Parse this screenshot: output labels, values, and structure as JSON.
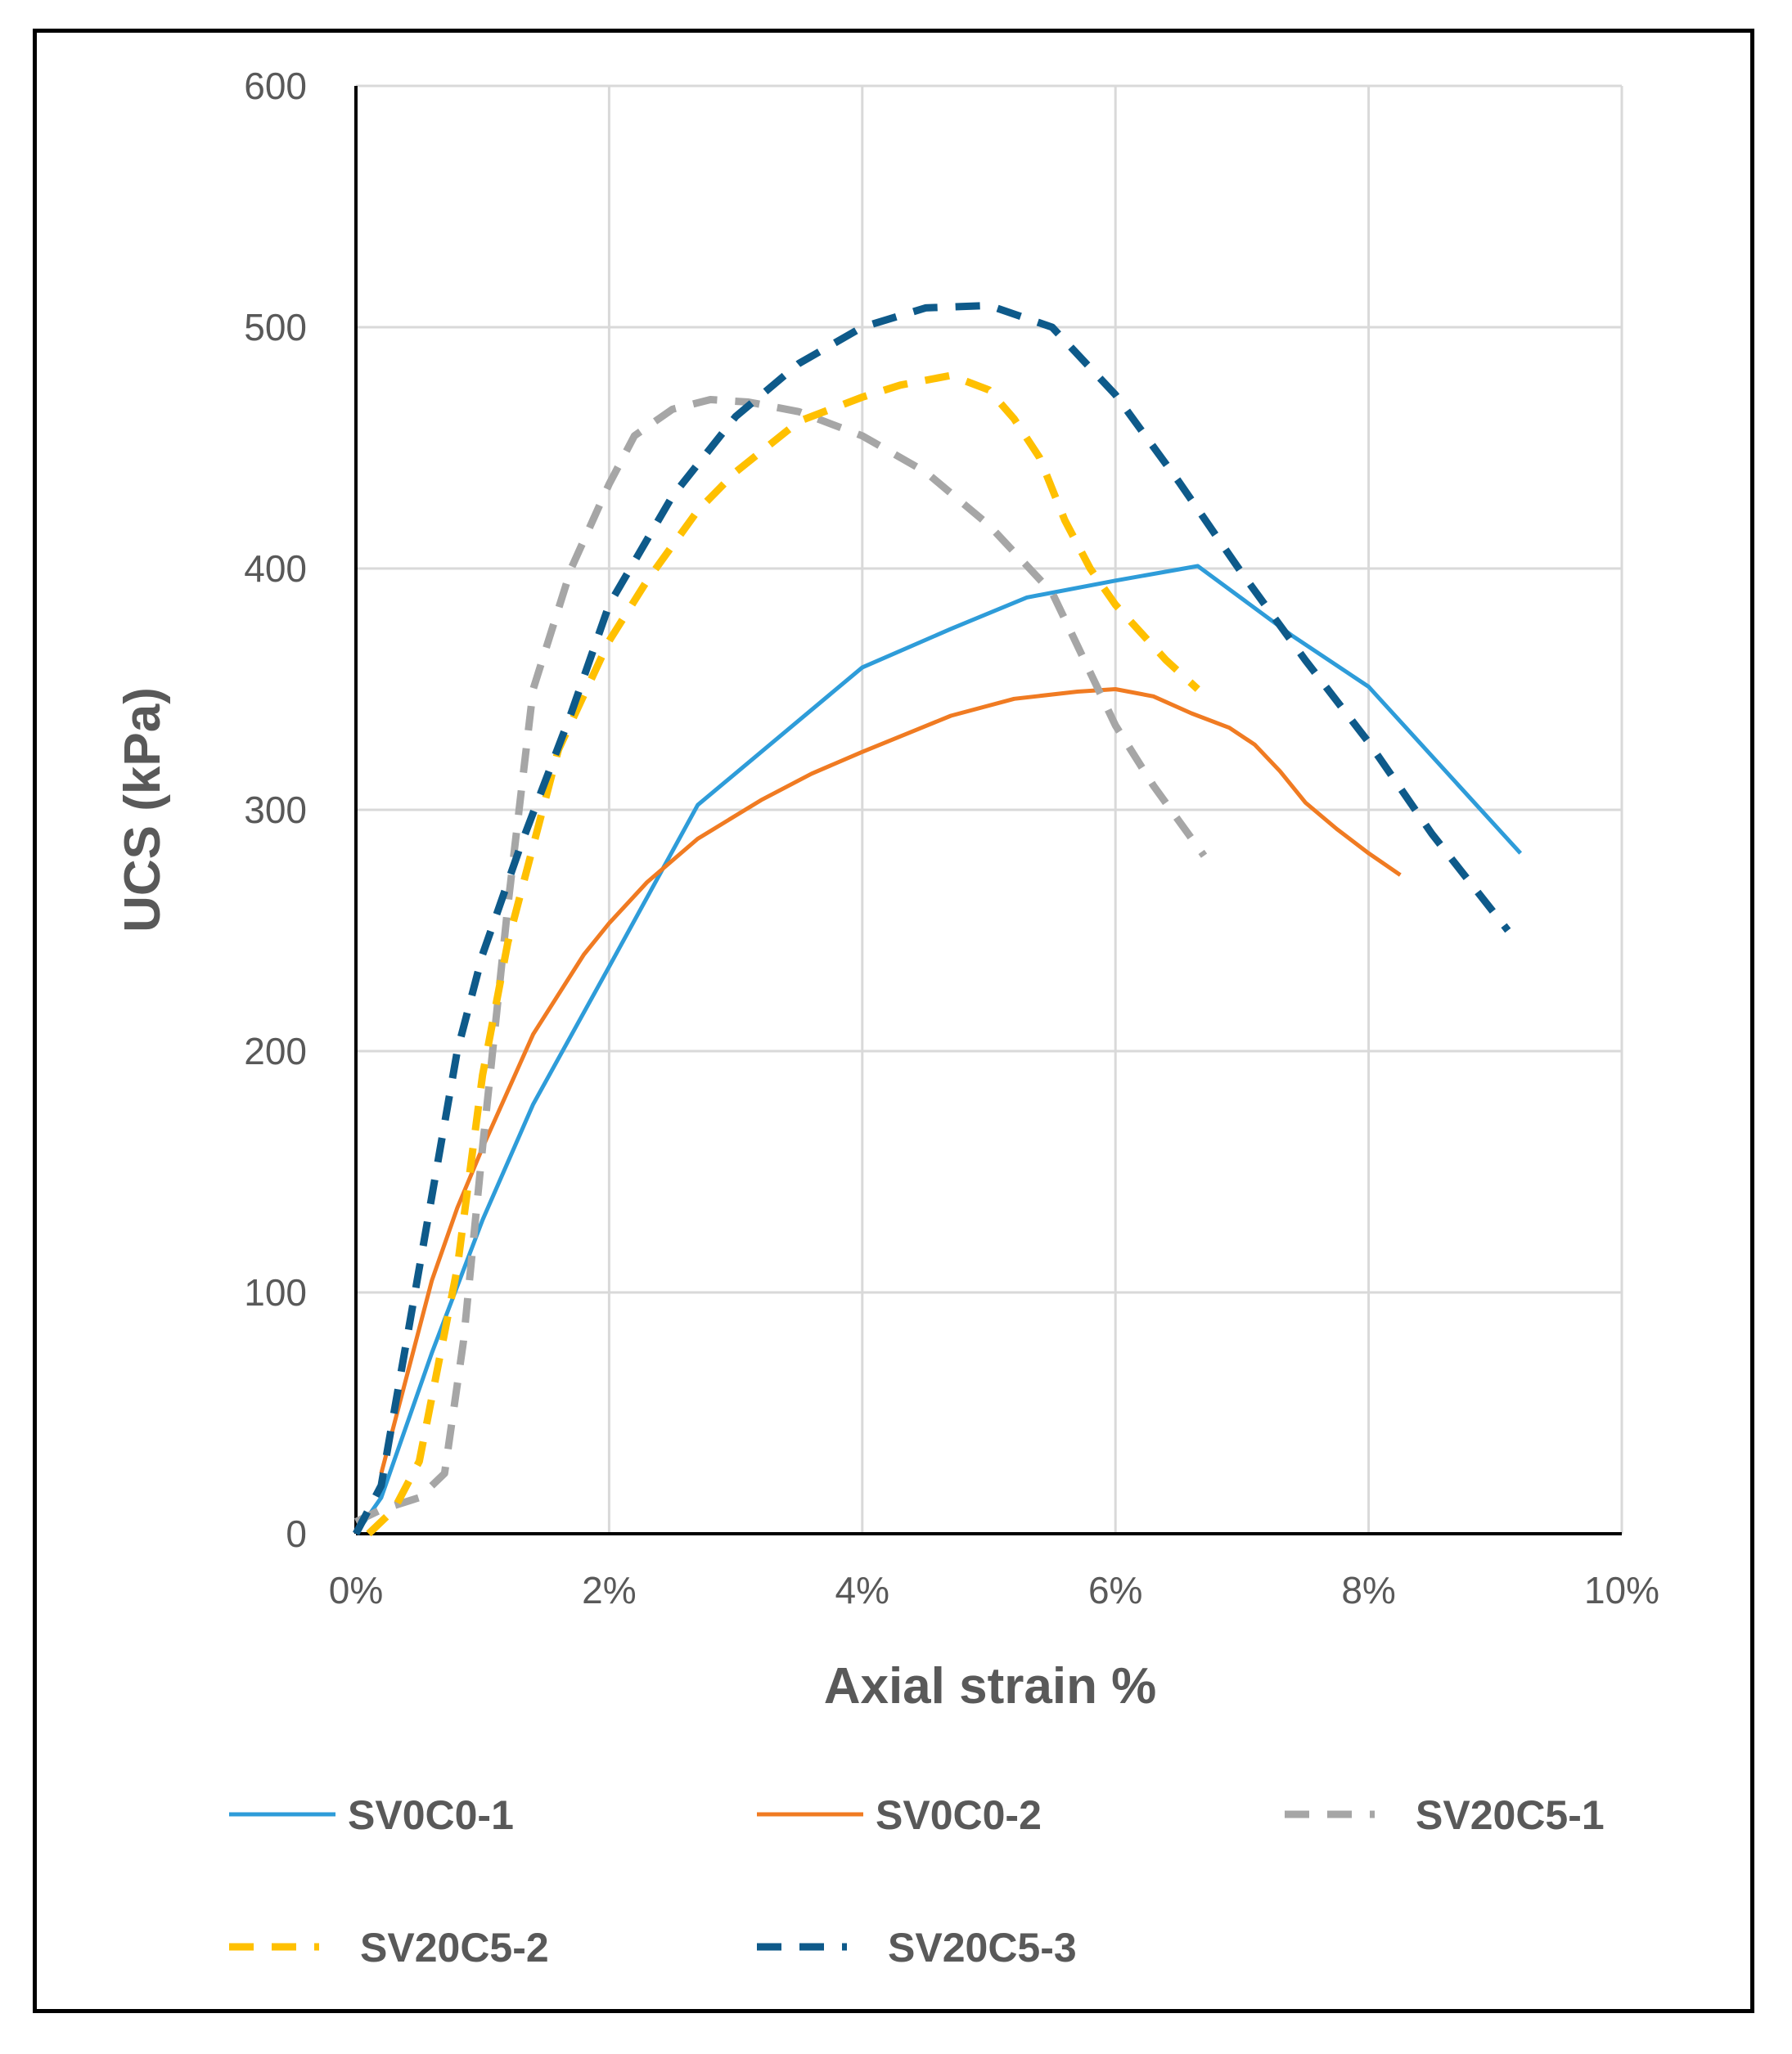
{
  "chart_data": {
    "type": "line",
    "title": "",
    "xlabel": "Axial strain %",
    "ylabel": "UCS  (kPa)",
    "xlim": [
      0,
      10
    ],
    "ylim": [
      0,
      600
    ],
    "x_ticks": [
      0,
      2,
      4,
      6,
      8,
      10
    ],
    "x_tick_labels": [
      "0%",
      "2%",
      "4%",
      "6%",
      "8%",
      "10%"
    ],
    "y_ticks": [
      0,
      100,
      200,
      300,
      400,
      500,
      600
    ],
    "y_tick_labels": [
      "0",
      "100",
      "200",
      "300",
      "400",
      "500",
      "600"
    ],
    "grid": true,
    "legend_position": "bottom",
    "series": [
      {
        "name": "SV0C0-1",
        "color": "#2E9CD9",
        "dashed": false,
        "points": [
          [
            0,
            0
          ],
          [
            0.2,
            15
          ],
          [
            0.6,
            75
          ],
          [
            1.0,
            130
          ],
          [
            1.4,
            178
          ],
          [
            2.0,
            235
          ],
          [
            2.7,
            302
          ],
          [
            4.0,
            359
          ],
          [
            4.7,
            375
          ],
          [
            5.3,
            388
          ],
          [
            6.0,
            395
          ],
          [
            6.65,
            401
          ],
          [
            7.4,
            372
          ],
          [
            8.0,
            351
          ],
          [
            9.2,
            282
          ]
        ]
      },
      {
        "name": "SV0C0-2",
        "color": "#F07B22",
        "dashed": false,
        "points": [
          [
            0.2,
            25
          ],
          [
            0.6,
            105
          ],
          [
            0.8,
            135
          ],
          [
            1.0,
            160
          ],
          [
            1.4,
            207
          ],
          [
            1.8,
            240
          ],
          [
            2.0,
            253
          ],
          [
            2.3,
            270
          ],
          [
            2.7,
            288
          ],
          [
            3.2,
            304
          ],
          [
            3.6,
            315
          ],
          [
            4.0,
            324
          ],
          [
            4.7,
            339
          ],
          [
            5.2,
            346
          ],
          [
            5.7,
            349
          ],
          [
            6.0,
            350
          ],
          [
            6.3,
            347
          ],
          [
            6.6,
            340
          ],
          [
            6.9,
            334
          ],
          [
            7.1,
            327
          ],
          [
            7.3,
            316
          ],
          [
            7.5,
            303
          ],
          [
            7.75,
            292
          ],
          [
            8.0,
            282
          ],
          [
            8.25,
            273
          ]
        ]
      },
      {
        "name": "SV20C5-1",
        "color": "#A6A6A6",
        "dashed": true,
        "points": [
          [
            0,
            5
          ],
          [
            0.2,
            10
          ],
          [
            0.5,
            15
          ],
          [
            0.7,
            25
          ],
          [
            0.85,
            80
          ],
          [
            1.0,
            160
          ],
          [
            1.2,
            260
          ],
          [
            1.4,
            350
          ],
          [
            1.7,
            400
          ],
          [
            2.0,
            435
          ],
          [
            2.2,
            455
          ],
          [
            2.5,
            466
          ],
          [
            2.8,
            470
          ],
          [
            3.1,
            469
          ],
          [
            3.5,
            465
          ],
          [
            4.0,
            455
          ],
          [
            4.5,
            440
          ],
          [
            5.0,
            418
          ],
          [
            5.5,
            390
          ],
          [
            6.0,
            335
          ],
          [
            6.3,
            310
          ],
          [
            6.7,
            281
          ]
        ]
      },
      {
        "name": "SV20C5-2",
        "color": "#FFC000",
        "dashed": true,
        "points": [
          [
            0.1,
            0
          ],
          [
            0.3,
            10
          ],
          [
            0.5,
            30
          ],
          [
            0.8,
            110
          ],
          [
            1.0,
            190
          ],
          [
            1.2,
            245
          ],
          [
            1.6,
            325
          ],
          [
            2.0,
            370
          ],
          [
            2.3,
            395
          ],
          [
            2.7,
            424
          ],
          [
            3.0,
            440
          ],
          [
            3.5,
            461
          ],
          [
            4.0,
            471
          ],
          [
            4.3,
            476
          ],
          [
            4.7,
            480
          ],
          [
            5.0,
            474
          ],
          [
            5.2,
            462
          ],
          [
            5.4,
            446
          ],
          [
            5.6,
            420
          ],
          [
            5.8,
            400
          ],
          [
            6.0,
            385
          ],
          [
            6.4,
            362
          ],
          [
            6.65,
            350
          ]
        ]
      },
      {
        "name": "SV20C5-3",
        "color": "#0E5A8A",
        "dashed": true,
        "points": [
          [
            0,
            0
          ],
          [
            0.2,
            20
          ],
          [
            0.4,
            80
          ],
          [
            0.7,
            170
          ],
          [
            0.8,
            200
          ],
          [
            1.0,
            240
          ],
          [
            1.3,
            285
          ],
          [
            1.7,
            340
          ],
          [
            2.0,
            385
          ],
          [
            2.5,
            430
          ],
          [
            3.0,
            463
          ],
          [
            3.5,
            485
          ],
          [
            4.0,
            500
          ],
          [
            4.5,
            508
          ],
          [
            5.0,
            509
          ],
          [
            5.5,
            500
          ],
          [
            6.0,
            472
          ],
          [
            6.5,
            436
          ],
          [
            7.0,
            398
          ],
          [
            7.5,
            362
          ],
          [
            8.0,
            328
          ],
          [
            8.5,
            290
          ],
          [
            9.1,
            250
          ]
        ]
      }
    ]
  }
}
